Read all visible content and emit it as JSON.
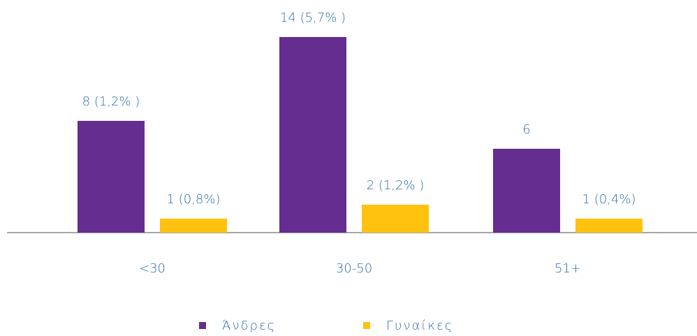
{
  "chart_data": {
    "type": "bar",
    "categories": [
      "<30",
      "30-50",
      "51+"
    ],
    "series": [
      {
        "name": "Άνδρες",
        "color": "#662d91",
        "values": [
          8,
          14,
          6
        ],
        "value_labels": [
          "8 (1,2% )",
          "14 (5,7% )",
          "6"
        ]
      },
      {
        "name": "Γυναίκες",
        "color": "#ffc20e",
        "values": [
          1,
          2,
          1
        ],
        "value_labels": [
          "1 (0,8%)",
          "2 (1,2% )",
          "1 (0,4%)"
        ]
      }
    ]
  }
}
